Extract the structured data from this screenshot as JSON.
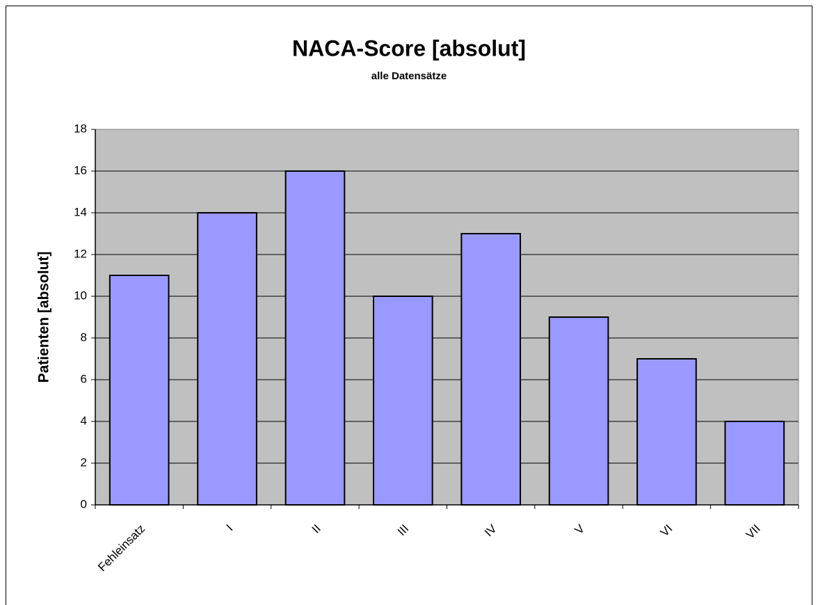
{
  "chart_data": {
    "type": "bar",
    "title": "NACA-Score [absolut]",
    "subtitle": "alle Datensätze",
    "y_label": "Patienten [absolut]",
    "categories": [
      "Fehleinsatz",
      "I",
      "II",
      "III",
      "IV",
      "V",
      "VI",
      "VII"
    ],
    "values": [
      11,
      14,
      16,
      10,
      13,
      9,
      7,
      4
    ],
    "color": "#9999ff",
    "ylim": [
      0,
      18
    ],
    "yticks": [
      0,
      2,
      4,
      6,
      8,
      10,
      12,
      14,
      16,
      18
    ],
    "grid": true
  }
}
